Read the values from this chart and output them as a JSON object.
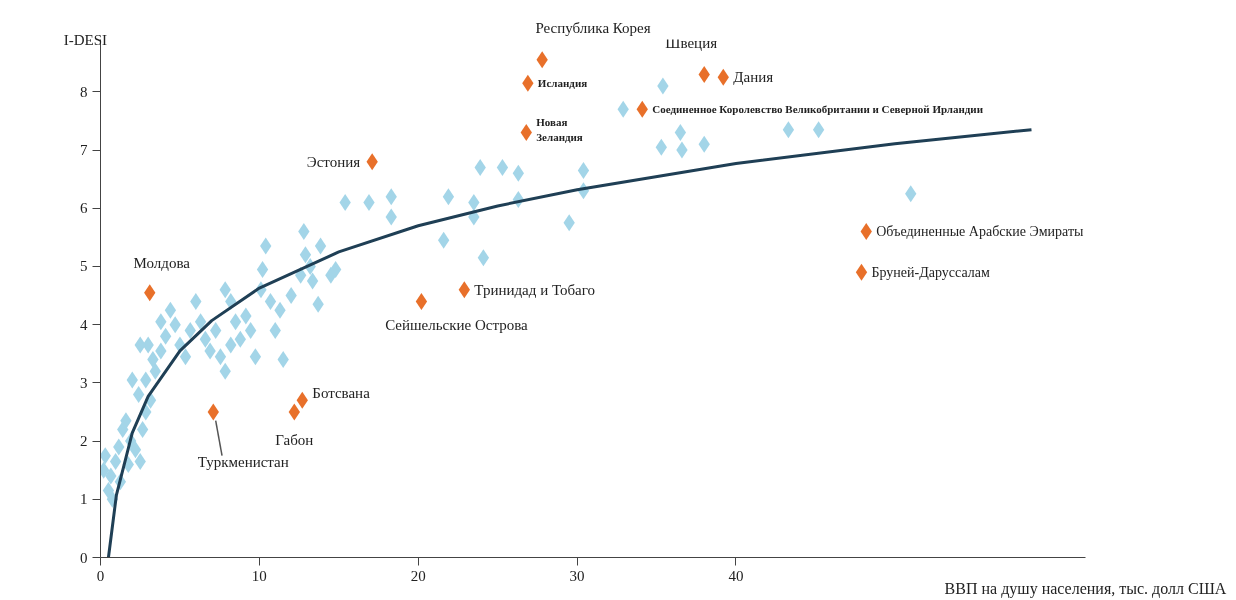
{
  "chart_data": {
    "type": "scatter",
    "xlabel": "ВВП на душу населения, тыс. долл США",
    "ylabel": "I-DESI",
    "xlim": [
      0,
      62
    ],
    "ylim": [
      0,
      8.9
    ],
    "xticks": [
      0,
      10,
      20,
      30,
      40
    ],
    "yticks": [
      0,
      1,
      2,
      3,
      4,
      5,
      6,
      7,
      8
    ],
    "grid": false,
    "marker": "diamond",
    "series": [
      {
        "color": "#a3d5e8",
        "x": [
          0.2,
          0.5,
          0.75,
          0.3,
          0.95,
          1.15,
          1.4,
          1.6,
          1.9,
          2.2,
          2.5,
          1.75,
          1.25,
          0.65,
          2.65,
          2.85,
          3.15,
          2.4,
          2.0,
          2.85,
          3.45,
          3.8,
          3.0,
          2.5,
          3.3,
          4.1,
          4.4,
          4.7,
          3.8,
          5.0,
          5.35,
          5.65,
          6.0,
          6.3,
          6.6,
          6.9,
          7.25,
          7.55,
          7.85,
          8.2,
          8.5,
          8.2,
          7.85,
          8.8,
          9.15,
          9.45,
          9.75,
          10.1,
          10.2,
          10.4,
          10.7,
          11.0,
          11.3,
          11.5,
          12.0,
          12.6,
          12.8,
          12.9,
          13.2,
          13.35,
          13.7,
          13.85,
          14.5,
          14.8,
          15.4,
          16.9,
          18.3,
          18.3,
          21.9,
          23.5,
          23.5,
          26.3,
          30.4,
          30.4,
          29.5,
          21.6,
          24.1,
          23.9,
          25.3,
          26.3,
          32.9,
          35.4,
          35.3,
          36.6,
          38.0,
          36.5,
          43.3,
          45.2,
          51.0
        ],
        "values": [
          1.5,
          1.15,
          1.0,
          1.75,
          1.65,
          1.9,
          2.2,
          2.35,
          2.0,
          1.85,
          1.65,
          1.6,
          1.3,
          1.4,
          2.2,
          2.5,
          2.7,
          2.8,
          3.05,
          3.05,
          3.2,
          3.55,
          3.65,
          3.65,
          3.4,
          3.8,
          4.25,
          4.0,
          4.05,
          3.65,
          3.45,
          3.9,
          4.4,
          4.05,
          3.75,
          3.55,
          3.9,
          3.45,
          3.2,
          3.65,
          4.05,
          4.4,
          4.6,
          3.75,
          4.15,
          3.9,
          3.45,
          4.6,
          4.95,
          5.35,
          4.4,
          3.9,
          4.25,
          3.4,
          4.5,
          4.85,
          5.6,
          5.2,
          5.0,
          4.75,
          4.35,
          5.35,
          4.85,
          4.95,
          6.1,
          6.1,
          6.2,
          5.85,
          6.2,
          6.1,
          5.85,
          6.15,
          6.65,
          6.3,
          5.75,
          5.45,
          5.15,
          6.7,
          6.7,
          6.6,
          7.7,
          8.1,
          7.05,
          7.0,
          7.1,
          7.3,
          7.35,
          7.35,
          6.25
        ]
      },
      {
        "color": "#e8702a",
        "x": [
          3.1,
          7.1,
          12.2,
          12.7,
          17.1,
          20.2,
          22.9,
          26.8,
          26.9,
          27.8,
          34.1,
          38.0,
          39.2,
          48.2,
          47.9
        ],
        "values": [
          4.55,
          2.5,
          2.5,
          2.7,
          6.8,
          4.4,
          4.6,
          7.3,
          8.15,
          8.55,
          7.7,
          8.3,
          8.25,
          5.6,
          4.9
        ]
      },
      {
        "type": "line",
        "color": "#1f3f55",
        "marker": "none",
        "x": [
          0.5,
          1,
          2,
          3,
          5,
          7,
          10,
          15,
          20,
          25,
          30,
          40,
          50,
          58.6
        ],
        "values": [
          0,
          1.07,
          2.14,
          2.77,
          3.55,
          4.07,
          4.63,
          5.25,
          5.7,
          6.04,
          6.32,
          6.77,
          7.11,
          7.35
        ]
      }
    ],
    "annotations": [
      {
        "text": "Молдова",
        "x": 3.1,
        "y": 4.55
      },
      {
        "text": "Туркменистан",
        "x": 7.1,
        "y": 2.5
      },
      {
        "text": "Габон",
        "x": 12.2,
        "y": 2.5
      },
      {
        "text": "Ботсвана",
        "x": 12.7,
        "y": 2.7
      },
      {
        "text": "Эстония",
        "x": 17.1,
        "y": 6.8
      },
      {
        "text": "Сейшельские Острова",
        "x": 20.2,
        "y": 4.4
      },
      {
        "text": "Тринидад и Тобаго",
        "x": 22.9,
        "y": 4.6
      },
      {
        "text": "Новая\nЗеландия",
        "x": 26.8,
        "y": 7.3
      },
      {
        "text": "Исландия",
        "x": 26.9,
        "y": 8.15
      },
      {
        "text": "Республика Корея",
        "x": 27.8,
        "y": 8.55
      },
      {
        "text": "Соединенное Королевство Великобритании и Северной Ирландии",
        "x": 34.1,
        "y": 7.7
      },
      {
        "text": "Швеция",
        "x": 38.0,
        "y": 8.3
      },
      {
        "text": "Дания",
        "x": 39.2,
        "y": 8.25
      },
      {
        "text": "Объединенные Арабские Эмираты",
        "x": 48.2,
        "y": 5.6
      },
      {
        "text": "Бруней-Даруссалам",
        "x": 47.9,
        "y": 4.9
      }
    ]
  }
}
